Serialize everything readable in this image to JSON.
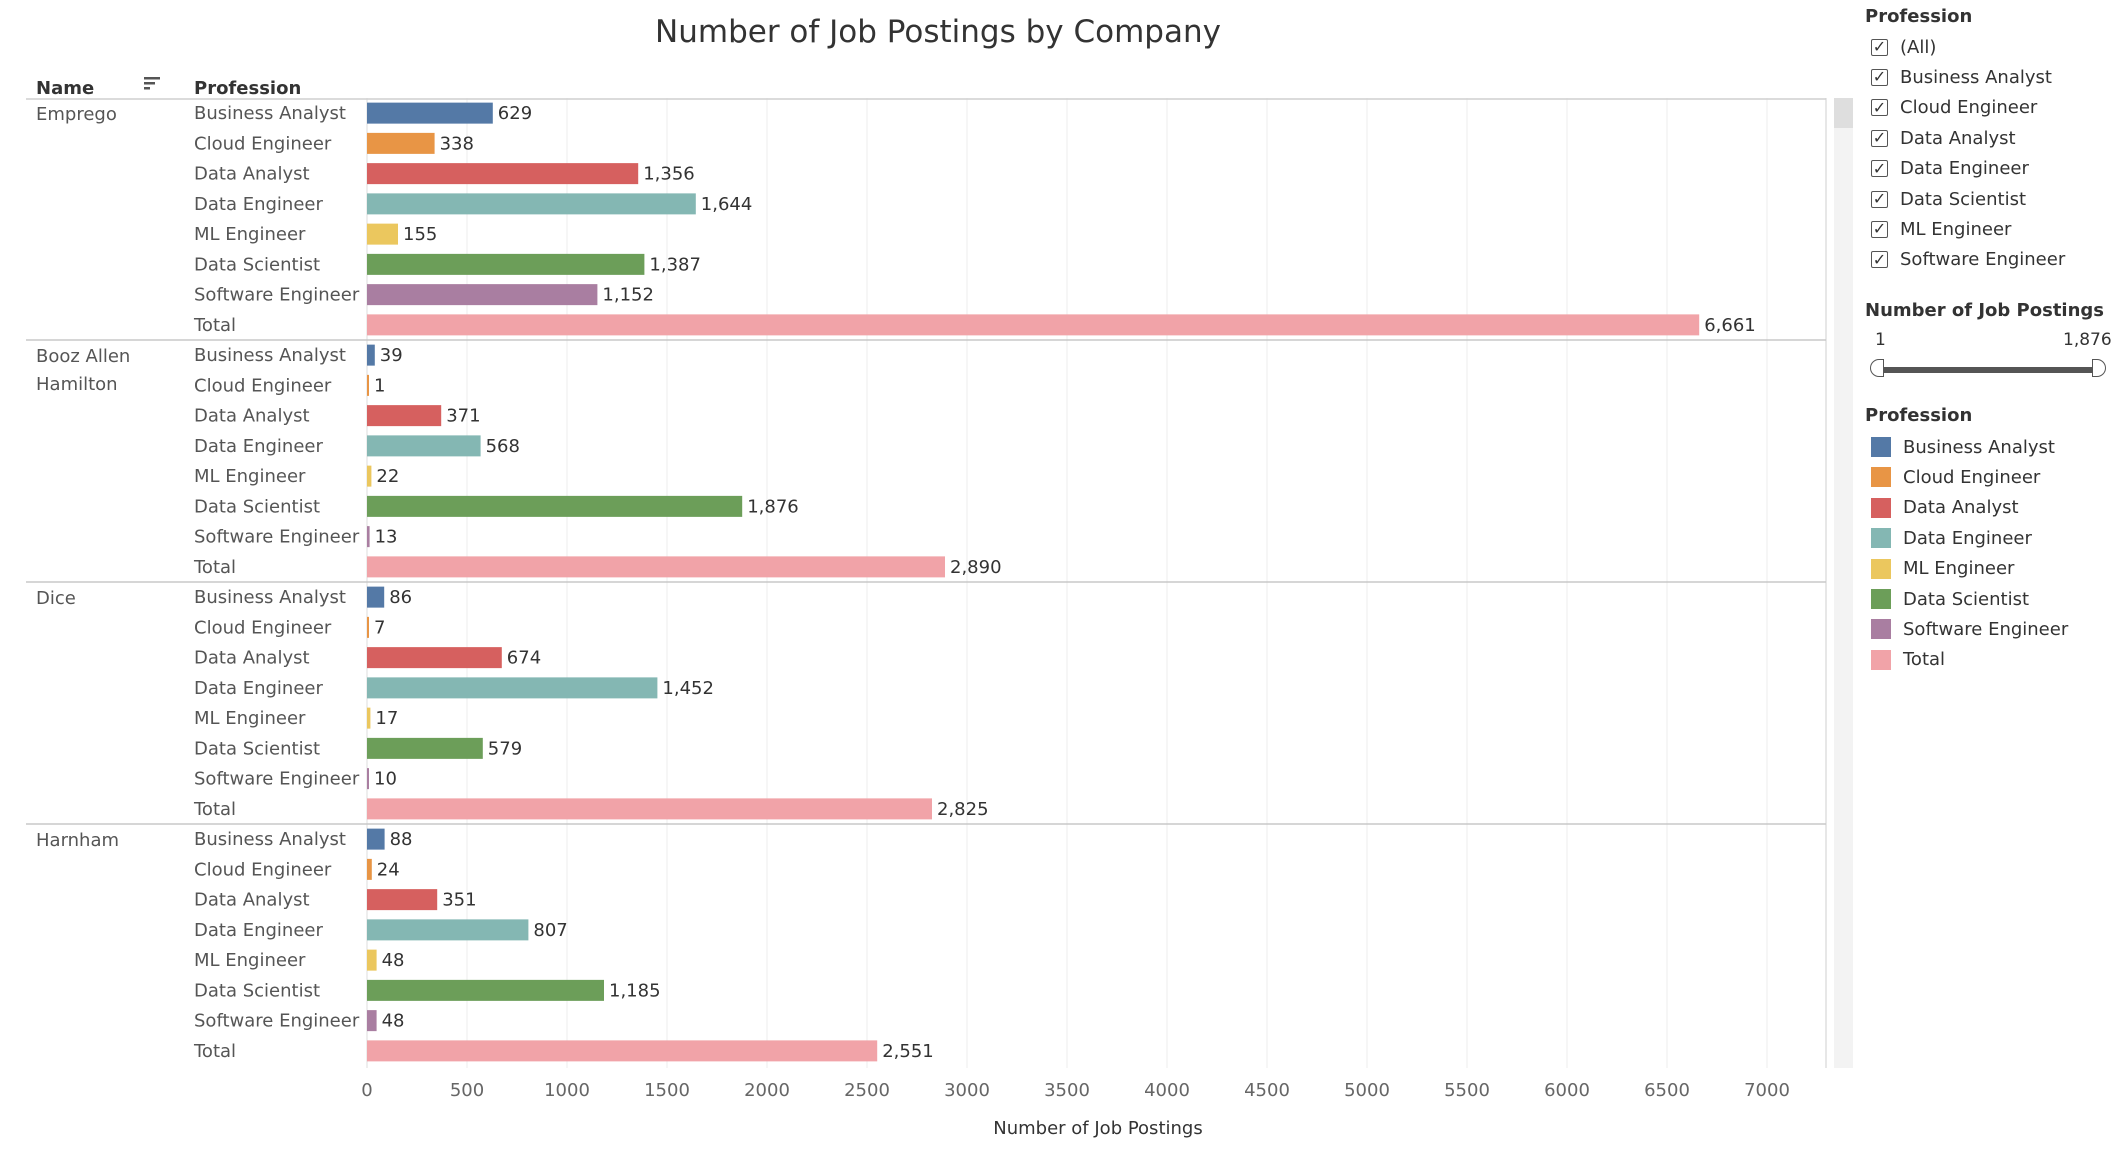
{
  "chart_data": {
    "type": "bar",
    "orientation": "horizontal",
    "title": "Number of Job Postings by Company",
    "xlabel": "Number of Job Postings",
    "column_headers": {
      "name": "Name",
      "profession": "Profession"
    },
    "xlim": [
      0,
      7000
    ],
    "x_ticks": [
      0,
      500,
      1000,
      1500,
      2000,
      2500,
      3000,
      3500,
      4000,
      4500,
      5000,
      5500,
      6000,
      6500,
      7000
    ],
    "grid": "vertical",
    "groups": [
      {
        "name_lines": [
          "Emprego"
        ],
        "rows": [
          {
            "profession": "Business Analyst",
            "value": 629,
            "label": "629"
          },
          {
            "profession": "Cloud Engineer",
            "value": 338,
            "label": "338"
          },
          {
            "profession": "Data Analyst",
            "value": 1356,
            "label": "1,356"
          },
          {
            "profession": "Data Engineer",
            "value": 1644,
            "label": "1,644"
          },
          {
            "profession": "ML Engineer",
            "value": 155,
            "label": "155"
          },
          {
            "profession": "Data Scientist",
            "value": 1387,
            "label": "1,387"
          },
          {
            "profession": "Software Engineer",
            "value": 1152,
            "label": "1,152"
          },
          {
            "profession": "Total",
            "value": 6661,
            "label": "6,661"
          }
        ]
      },
      {
        "name_lines": [
          "Booz Allen",
          "Hamilton"
        ],
        "rows": [
          {
            "profession": "Business Analyst",
            "value": 39,
            "label": "39"
          },
          {
            "profession": "Cloud Engineer",
            "value": 1,
            "label": "1"
          },
          {
            "profession": "Data Analyst",
            "value": 371,
            "label": "371"
          },
          {
            "profession": "Data Engineer",
            "value": 568,
            "label": "568"
          },
          {
            "profession": "ML Engineer",
            "value": 22,
            "label": "22"
          },
          {
            "profession": "Data Scientist",
            "value": 1876,
            "label": "1,876"
          },
          {
            "profession": "Software Engineer",
            "value": 13,
            "label": "13"
          },
          {
            "profession": "Total",
            "value": 2890,
            "label": "2,890"
          }
        ]
      },
      {
        "name_lines": [
          "Dice"
        ],
        "rows": [
          {
            "profession": "Business Analyst",
            "value": 86,
            "label": "86"
          },
          {
            "profession": "Cloud Engineer",
            "value": 7,
            "label": "7"
          },
          {
            "profession": "Data Analyst",
            "value": 674,
            "label": "674"
          },
          {
            "profession": "Data Engineer",
            "value": 1452,
            "label": "1,452"
          },
          {
            "profession": "ML Engineer",
            "value": 17,
            "label": "17"
          },
          {
            "profession": "Data Scientist",
            "value": 579,
            "label": "579"
          },
          {
            "profession": "Software Engineer",
            "value": 10,
            "label": "10"
          },
          {
            "profession": "Total",
            "value": 2825,
            "label": "2,825"
          }
        ]
      },
      {
        "name_lines": [
          "Harnham"
        ],
        "rows": [
          {
            "profession": "Business Analyst",
            "value": 88,
            "label": "88"
          },
          {
            "profession": "Cloud Engineer",
            "value": 24,
            "label": "24"
          },
          {
            "profession": "Data Analyst",
            "value": 351,
            "label": "351"
          },
          {
            "profession": "Data Engineer",
            "value": 807,
            "label": "807"
          },
          {
            "profession": "ML Engineer",
            "value": 48,
            "label": "48"
          },
          {
            "profession": "Data Scientist",
            "value": 1185,
            "label": "1,185"
          },
          {
            "profession": "Software Engineer",
            "value": 48,
            "label": "48"
          },
          {
            "profession": "Total",
            "value": 2551,
            "label": "2,551"
          }
        ]
      }
    ],
    "colors": {
      "Business Analyst": "#5479a6",
      "Cloud Engineer": "#e89545",
      "Data Analyst": "#d6605f",
      "Data Engineer": "#84b7b3",
      "ML Engineer": "#ebc75e",
      "Data Scientist": "#6c9e59",
      "Software Engineer": "#a97ea1",
      "Total": "#f1a3a8"
    }
  },
  "filter": {
    "title": "Profession",
    "items": [
      {
        "label": "(All)",
        "checked": true
      },
      {
        "label": "Business Analyst",
        "checked": true
      },
      {
        "label": "Cloud Engineer",
        "checked": true
      },
      {
        "label": "Data Analyst",
        "checked": true
      },
      {
        "label": "Data Engineer",
        "checked": true
      },
      {
        "label": "Data Scientist",
        "checked": true
      },
      {
        "label": "ML Engineer",
        "checked": true
      },
      {
        "label": "Software Engineer",
        "checked": true
      }
    ],
    "check_glyph": "✓"
  },
  "range_filter": {
    "title": "Number of Job Postings",
    "min_label": "1",
    "max_label": "1,876"
  },
  "legend": {
    "title": "Profession",
    "items": [
      "Business Analyst",
      "Cloud Engineer",
      "Data Analyst",
      "Data Engineer",
      "ML Engineer",
      "Data Scientist",
      "Software Engineer",
      "Total"
    ]
  }
}
